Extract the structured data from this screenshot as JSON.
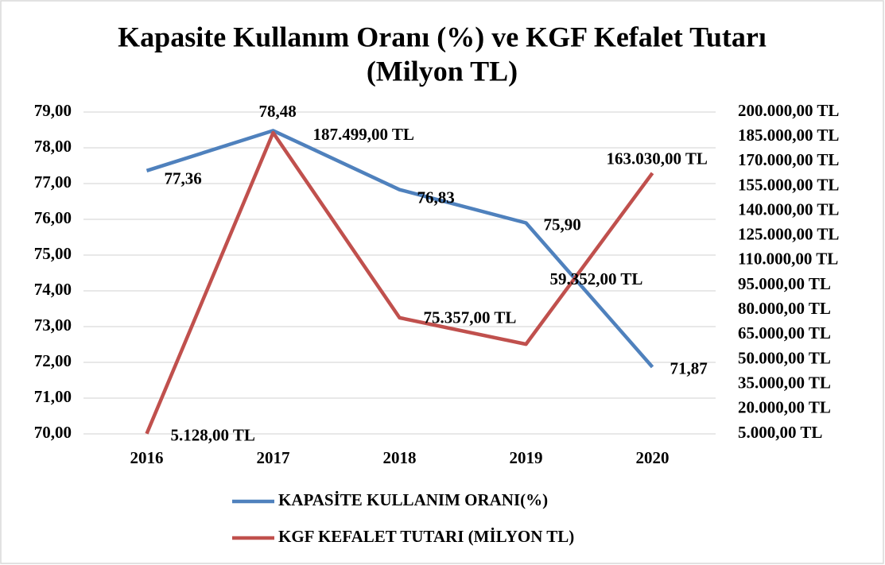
{
  "chart_data": {
    "type": "line",
    "title": [
      "Kapasite Kullanım Oranı (%) ve KGF Kefalet Tutarı",
      "(Milyon TL)"
    ],
    "categories": [
      "2016",
      "2017",
      "2018",
      "2019",
      "2020"
    ],
    "series": [
      {
        "name": "KAPASİTE KULLANIM ORANI(%)",
        "color": "#4f81bd",
        "values": [
          77.36,
          78.48,
          76.83,
          75.9,
          71.87
        ],
        "value_labels": [
          "77,36",
          "78,48",
          "76,83",
          "75,90",
          "71,87"
        ]
      },
      {
        "name": "KGF KEFALET TUTARI  (MİLYON TL)",
        "color": "#c0504d",
        "axis": "y2",
        "values": [
          5128,
          187499,
          75357,
          59352,
          163030
        ],
        "value_labels": [
          "5.128,00 TL",
          "187.499,00 TL",
          "75.357,00 TL",
          "59.352,00 TL",
          "163.030,00 TL"
        ]
      }
    ],
    "ylim": [
      70,
      79
    ],
    "yticks": [
      {
        "value": 70,
        "label": "70,00"
      },
      {
        "value": 71,
        "label": "71,00"
      },
      {
        "value": 72,
        "label": "72,00"
      },
      {
        "value": 73,
        "label": "73,00"
      },
      {
        "value": 74,
        "label": "74,00"
      },
      {
        "value": 75,
        "label": "75,00"
      },
      {
        "value": 76,
        "label": "76,00"
      },
      {
        "value": 77,
        "label": "77,00"
      },
      {
        "value": 78,
        "label": "78,00"
      },
      {
        "value": 79,
        "label": "79,00"
      }
    ],
    "y2lim": [
      5000,
      200000
    ],
    "y2ticks": [
      {
        "value": 5000,
        "label": "5.000,00 TL"
      },
      {
        "value": 20000,
        "label": "20.000,00 TL"
      },
      {
        "value": 35000,
        "label": "35.000,00 TL"
      },
      {
        "value": 50000,
        "label": "50.000,00 TL"
      },
      {
        "value": 65000,
        "label": "65.000,00 TL"
      },
      {
        "value": 80000,
        "label": "80.000,00 TL"
      },
      {
        "value": 95000,
        "label": "95.000,00 TL"
      },
      {
        "value": 110000,
        "label": "110.000,00 TL"
      },
      {
        "value": 125000,
        "label": "125.000,00 TL"
      },
      {
        "value": 140000,
        "label": "140.000,00 TL"
      },
      {
        "value": 155000,
        "label": "155.000,00 TL"
      },
      {
        "value": 170000,
        "label": "170.000,00 TL"
      },
      {
        "value": 185000,
        "label": "185.000,00 TL"
      },
      {
        "value": 200000,
        "label": "200.000,00 TL"
      }
    ],
    "grid": true,
    "legend": "bottom"
  }
}
